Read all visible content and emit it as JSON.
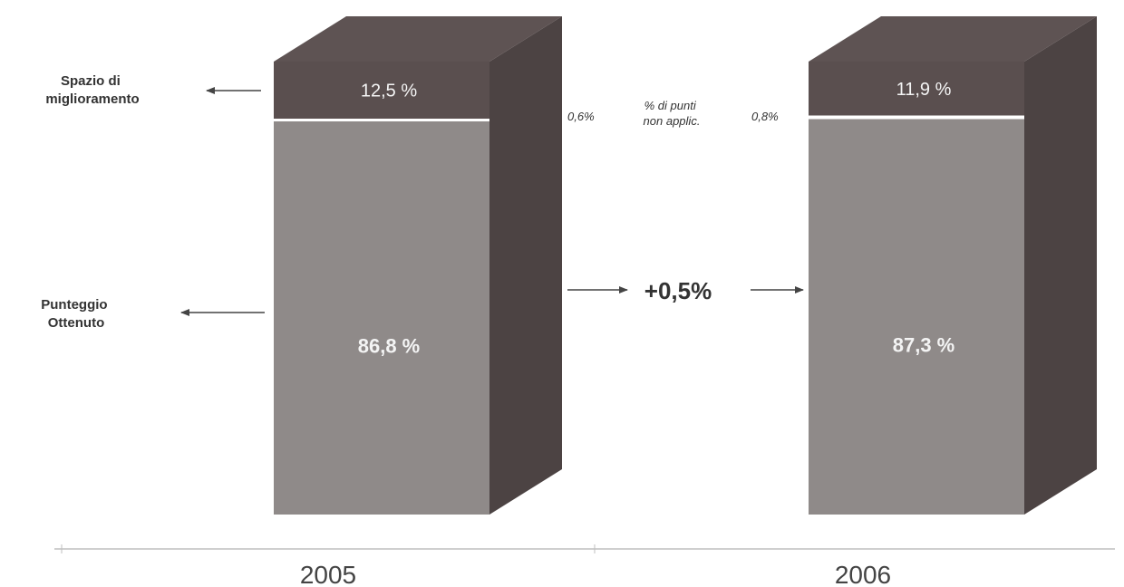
{
  "chart_data": {
    "type": "bar",
    "stacked": true,
    "style": "3d",
    "categories": [
      "2005",
      "2006"
    ],
    "series": [
      {
        "name": "Punteggio Ottenuto",
        "values": [
          86.8,
          87.3
        ],
        "labels": [
          "86,8 %",
          "87,3 %"
        ],
        "color": "#8f8a89"
      },
      {
        "name": "% di punti non applic.",
        "values": [
          0.6,
          0.8
        ],
        "labels": [
          "0,6%",
          "0,8%"
        ],
        "color": "#ffffff"
      },
      {
        "name": "Spazio di miglioramento",
        "values": [
          12.5,
          11.9
        ],
        "labels": [
          "12,5 %",
          "11,9 %"
        ],
        "color": "#5a4f4f"
      }
    ],
    "series_labels": {
      "improvement": [
        "Spazio di",
        "miglioramento"
      ],
      "not_applicable": [
        "% di punti",
        "non applic."
      ],
      "score": [
        "Punteggio",
        "Ottenuto"
      ]
    },
    "delta_label": "+0,5%",
    "ylim": [
      0,
      100
    ],
    "grid": false,
    "colors": {
      "front_score": "#8f8a89",
      "front_improvement": "#5a4f4f",
      "side": "#4c4343",
      "top": "#5e5353",
      "divider": "#ffffff",
      "text_dark": "#333333",
      "text_light": "#f4f4f4",
      "axis": "#bfbfbf"
    }
  }
}
